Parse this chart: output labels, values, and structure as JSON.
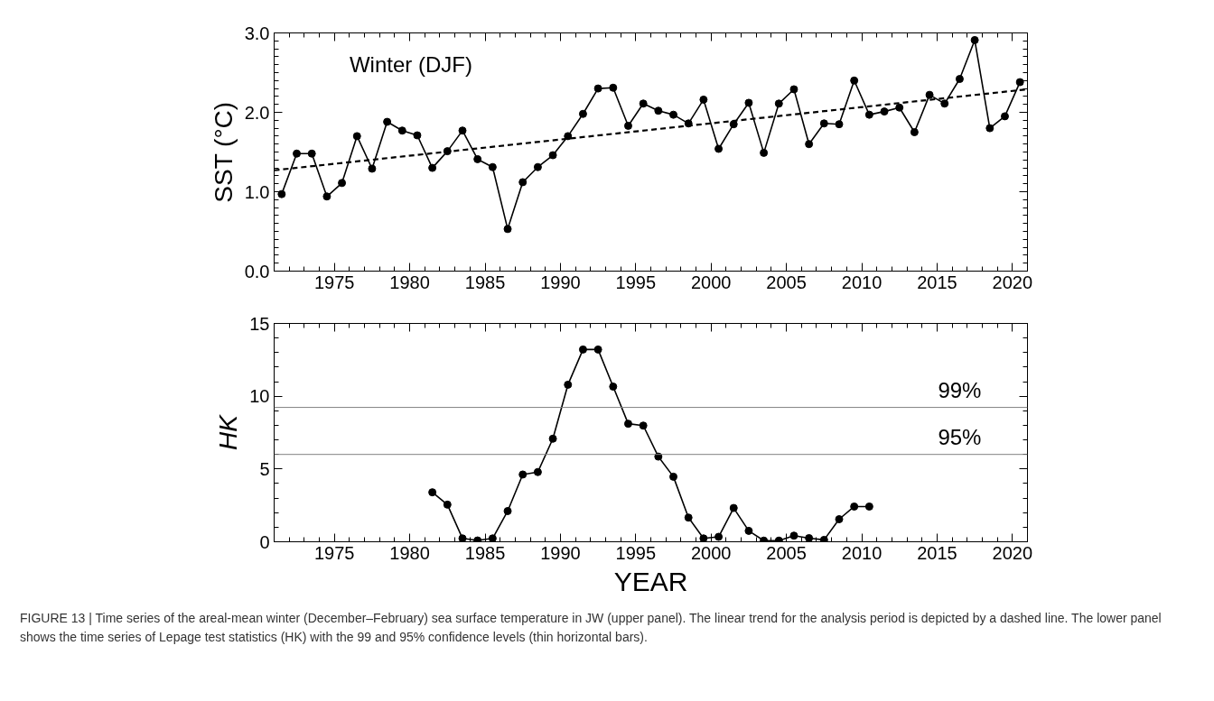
{
  "chart_data": [
    {
      "type": "line",
      "ylabel": "SST (°C)",
      "xlim": [
        1971,
        2021
      ],
      "ylim": [
        0,
        3
      ],
      "xticks": [
        1975,
        1980,
        1985,
        1990,
        1995,
        2000,
        2005,
        2010,
        2015,
        2020
      ],
      "yticks": [
        {
          "value": 0,
          "label": "0.0"
        },
        {
          "value": 1,
          "label": "1.0"
        },
        {
          "value": 2,
          "label": "2.0"
        },
        {
          "value": 3,
          "label": "3.0"
        }
      ],
      "grid": false,
      "annotations": [
        "Winter (DJF)"
      ],
      "series": [
        {
          "color": "#000000",
          "marker": "circle",
          "line_style": "solid",
          "x": [
            1971.5,
            1972.5,
            1973.5,
            1974.5,
            1975.5,
            1976.5,
            1977.5,
            1978.5,
            1979.5,
            1980.5,
            1981.5,
            1982.5,
            1983.5,
            1984.5,
            1985.5,
            1986.5,
            1987.5,
            1988.5,
            1989.5,
            1990.5,
            1991.5,
            1992.5,
            1993.5,
            1994.5,
            1995.5,
            1996.5,
            1997.5,
            1998.5,
            1999.5,
            2000.5,
            2001.5,
            2002.5,
            2003.5,
            2004.5,
            2005.5,
            2006.5,
            2007.5,
            2008.5,
            2009.5,
            2010.5,
            2011.5,
            2012.5,
            2013.5,
            2014.5,
            2015.5,
            2016.5,
            2017.5,
            2018.5,
            2019.5,
            2020.5
          ],
          "values": [
            0.97,
            1.48,
            1.48,
            0.94,
            1.11,
            1.7,
            1.29,
            1.88,
            1.77,
            1.71,
            1.3,
            1.51,
            1.77,
            1.41,
            1.31,
            0.53,
            1.12,
            1.31,
            1.46,
            1.7,
            1.98,
            2.3,
            2.31,
            1.83,
            2.11,
            2.02,
            1.97,
            1.86,
            2.16,
            1.54,
            1.85,
            2.12,
            1.49,
            2.11,
            2.29,
            1.6,
            1.86,
            1.85,
            2.4,
            1.97,
            2.01,
            2.06,
            1.75,
            2.22,
            2.11,
            2.42,
            2.91,
            1.8,
            1.95,
            2.38
          ]
        },
        {
          "color": "#000000",
          "marker": "none",
          "line_style": "dashed",
          "x": [
            1971,
            2021
          ],
          "values": [
            1.27,
            2.29
          ]
        }
      ]
    },
    {
      "type": "line",
      "xlabel": "YEAR",
      "ylabel": "HK",
      "xlim": [
        1971,
        2021
      ],
      "ylim": [
        0,
        15
      ],
      "xticks": [
        1975,
        1980,
        1985,
        1990,
        1995,
        2000,
        2005,
        2010,
        2015,
        2020
      ],
      "yticks": [
        0,
        5,
        10,
        15
      ],
      "grid": false,
      "ref_lines": [
        {
          "axis": "y",
          "value": 9.23,
          "color": "#808080"
        },
        {
          "axis": "y",
          "value": 6.0,
          "color": "#808080"
        }
      ],
      "annotations": [
        {
          "text": "99%",
          "x": 2016.5,
          "y": 9.23
        },
        {
          "text": "95%",
          "x": 2016.5,
          "y": 6.0
        },
        "FIGURE 13 | Time series of the areal-mean winter (December–February) sea surface temperature in JW (upper panel). The linear trend for the analysis period is depicted by a dashed line. The lower panel shows the time series of Lepage test statistics (HK) with the 99 and 95% confidence levels (thin horizontal bars)."
      ],
      "series": [
        {
          "color": "#000000",
          "marker": "circle",
          "line_style": "solid",
          "x": [
            1981.5,
            1982.5,
            1983.5,
            1984.5,
            1985.5,
            1986.5,
            1987.5,
            1988.5,
            1989.5,
            1990.5,
            1991.5,
            1992.5,
            1993.5,
            1994.5,
            1995.5,
            1996.5,
            1997.5,
            1998.5,
            1999.5,
            2000.5,
            2001.5,
            2002.5,
            2003.5,
            2004.5,
            2005.5,
            2006.5,
            2007.5,
            2008.5,
            2009.5,
            2010.5
          ],
          "values": [
            3.4,
            2.55,
            0.23,
            0.09,
            0.23,
            2.11,
            4.62,
            4.79,
            7.08,
            10.79,
            13.21,
            13.21,
            10.66,
            8.11,
            7.98,
            5.85,
            4.47,
            1.66,
            0.23,
            0.34,
            2.32,
            0.75,
            0.08,
            0.08,
            0.42,
            0.25,
            0.13,
            1.55,
            2.42,
            2.42
          ]
        }
      ]
    }
  ]
}
